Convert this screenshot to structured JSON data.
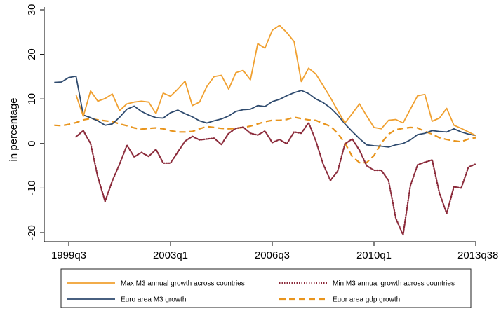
{
  "chart_data": {
    "type": "line",
    "ylabel": "in percentage",
    "xlabel": "",
    "ylim": [
      -21,
      30
    ],
    "y_ticks": [
      -20,
      -10,
      0,
      10,
      20,
      30
    ],
    "x_ticks": [
      {
        "label": "1999q3",
        "value": 1999.5
      },
      {
        "label": "2003q1",
        "value": 2003.0
      },
      {
        "label": "2006q3",
        "value": 2006.5
      },
      {
        "label": "2010q1",
        "value": 2010.0
      },
      {
        "label": "2013q38",
        "value": 2013.5
      }
    ],
    "xlim": [
      1998.5,
      2013.5
    ],
    "grid": false,
    "legend_position": "bottom",
    "series": [
      {
        "name": "Max M3 annual growth across countries",
        "color": "#f0a030",
        "style": "solid",
        "x": [
          1999.75,
          2000.0,
          2000.25,
          2000.5,
          2000.75,
          2001.0,
          2001.25,
          2001.5,
          2001.75,
          2002.0,
          2002.25,
          2002.5,
          2002.75,
          2003.0,
          2003.25,
          2003.5,
          2003.75,
          2004.0,
          2004.25,
          2004.5,
          2004.75,
          2005.0,
          2005.25,
          2005.5,
          2005.75,
          2006.0,
          2006.25,
          2006.5,
          2006.75,
          2007.0,
          2007.25,
          2007.5,
          2007.75,
          2008.0,
          2008.25,
          2008.5,
          2008.75,
          2009.0,
          2009.25,
          2009.5,
          2009.75,
          2010.0,
          2010.25,
          2010.5,
          2010.75,
          2011.0,
          2011.25,
          2011.5,
          2011.75,
          2012.0,
          2012.25,
          2012.5,
          2012.75,
          2013.0,
          2013.25,
          2013.5
        ],
        "values": [
          10.9,
          6.1,
          11.8,
          9.5,
          10.1,
          11.1,
          7.4,
          8.9,
          9.3,
          9.5,
          9.3,
          6.7,
          11.3,
          10.6,
          12.2,
          14.0,
          8.5,
          9.3,
          12.8,
          15.0,
          15.3,
          12.2,
          15.9,
          16.4,
          14.3,
          22.4,
          21.4,
          25.4,
          26.5,
          24.9,
          22.9,
          13.9,
          16.9,
          15.6,
          13.0,
          10.3,
          7.4,
          4.6,
          6.7,
          8.9,
          6.2,
          3.6,
          3.3,
          5.2,
          5.4,
          4.6,
          7.7,
          10.7,
          11.0,
          5.0,
          5.7,
          7.9,
          4.1,
          3.4,
          2.6,
          1.8
        ]
      },
      {
        "name": "Min M3 annual growth across countries",
        "color": "#8b2a3a",
        "style": "dotted",
        "x": [
          1999.75,
          2000.0,
          2000.25,
          2000.5,
          2000.75,
          2001.0,
          2001.25,
          2001.5,
          2001.75,
          2002.0,
          2002.25,
          2002.5,
          2002.75,
          2003.0,
          2003.25,
          2003.5,
          2003.75,
          2004.0,
          2004.25,
          2004.5,
          2004.75,
          2005.0,
          2005.25,
          2005.5,
          2005.75,
          2006.0,
          2006.25,
          2006.5,
          2006.75,
          2007.0,
          2007.25,
          2007.5,
          2007.75,
          2008.0,
          2008.25,
          2008.5,
          2008.75,
          2009.0,
          2009.25,
          2009.5,
          2009.75,
          2010.0,
          2010.25,
          2010.5,
          2010.75,
          2011.0,
          2011.25,
          2011.5,
          2011.75,
          2012.0,
          2012.25,
          2012.5,
          2012.75,
          2013.0,
          2013.25,
          2013.5
        ],
        "values": [
          1.5,
          2.9,
          0.0,
          -7.5,
          -13.0,
          -8.4,
          -4.6,
          -0.4,
          -3.0,
          -2.0,
          -2.9,
          -1.3,
          -4.4,
          -4.4,
          -1.9,
          0.5,
          1.6,
          0.8,
          1.0,
          1.2,
          -0.2,
          2.3,
          3.4,
          3.7,
          2.3,
          1.9,
          2.8,
          0.2,
          0.9,
          -0.1,
          2.6,
          2.3,
          4.7,
          0.6,
          -4.6,
          -8.3,
          -6.2,
          -0.1,
          1.0,
          -1.5,
          -5.0,
          -6.0,
          -6.0,
          -8.3,
          -16.8,
          -20.5,
          -9.5,
          -4.8,
          -4.2,
          -3.7,
          -11.1,
          -15.7,
          -9.7,
          -10.0,
          -5.3,
          -4.6
        ]
      },
      {
        "name": "Euro area M3 growth",
        "color": "#2e4a6e",
        "style": "solid",
        "x": [
          1999.0,
          1999.25,
          1999.5,
          1999.75,
          2000.0,
          2000.25,
          2000.5,
          2000.75,
          2001.0,
          2001.25,
          2001.5,
          2001.75,
          2002.0,
          2002.25,
          2002.5,
          2002.75,
          2003.0,
          2003.25,
          2003.5,
          2003.75,
          2004.0,
          2004.25,
          2004.5,
          2004.75,
          2005.0,
          2005.25,
          2005.5,
          2005.75,
          2006.0,
          2006.25,
          2006.5,
          2006.75,
          2007.0,
          2007.25,
          2007.5,
          2007.75,
          2008.0,
          2008.25,
          2008.5,
          2008.75,
          2009.0,
          2009.25,
          2009.5,
          2009.75,
          2010.0,
          2010.25,
          2010.5,
          2010.75,
          2011.0,
          2011.25,
          2011.5,
          2011.75,
          2012.0,
          2012.25,
          2012.5,
          2012.75,
          2013.0,
          2013.25,
          2013.5
        ],
        "values": [
          13.7,
          13.8,
          14.8,
          15.1,
          6.4,
          5.8,
          5.1,
          4.1,
          4.4,
          5.9,
          7.7,
          8.4,
          7.2,
          6.4,
          5.8,
          5.7,
          6.9,
          7.5,
          6.7,
          6.0,
          5.1,
          4.6,
          5.1,
          5.5,
          6.2,
          7.2,
          7.6,
          7.7,
          8.5,
          8.3,
          9.4,
          9.9,
          10.7,
          11.4,
          11.9,
          11.2,
          10.0,
          9.2,
          8.0,
          6.4,
          4.4,
          2.7,
          1.1,
          -0.3,
          -0.5,
          -0.6,
          -0.8,
          -0.3,
          0.0,
          0.8,
          2.0,
          2.3,
          2.9,
          2.7,
          2.6,
          3.3,
          2.6,
          2.1,
          1.8
        ]
      },
      {
        "name": "Euor area gdp growth",
        "color": "#e8941c",
        "style": "dashed",
        "x": [
          1999.0,
          1999.25,
          1999.5,
          1999.75,
          2000.0,
          2000.25,
          2000.5,
          2000.75,
          2001.0,
          2001.25,
          2001.5,
          2001.75,
          2002.0,
          2002.25,
          2002.5,
          2002.75,
          2003.0,
          2003.25,
          2003.5,
          2003.75,
          2004.0,
          2004.25,
          2004.5,
          2004.75,
          2005.0,
          2005.25,
          2005.5,
          2005.75,
          2006.0,
          2006.25,
          2006.5,
          2006.75,
          2007.0,
          2007.25,
          2007.5,
          2007.75,
          2008.0,
          2008.25,
          2008.5,
          2008.75,
          2009.0,
          2009.25,
          2009.5,
          2009.75,
          2010.0,
          2010.25,
          2010.5,
          2010.75,
          2011.0,
          2011.25,
          2011.5,
          2011.75,
          2012.0,
          2012.25,
          2012.5,
          2012.75,
          2013.0,
          2013.25,
          2013.5
        ],
        "values": [
          4.1,
          4.0,
          4.3,
          4.7,
          5.3,
          5.6,
          5.3,
          5.1,
          4.9,
          4.4,
          4.0,
          3.5,
          3.2,
          3.4,
          3.5,
          3.3,
          2.9,
          2.6,
          2.6,
          2.7,
          3.3,
          3.8,
          3.6,
          3.4,
          3.3,
          3.4,
          3.6,
          3.9,
          4.4,
          4.9,
          5.2,
          5.2,
          5.4,
          5.9,
          5.6,
          5.3,
          5.2,
          4.5,
          3.9,
          2.3,
          0.1,
          -2.9,
          -4.3,
          -4.3,
          -2.7,
          0.1,
          2.1,
          3.1,
          3.4,
          3.6,
          3.5,
          2.7,
          2.1,
          1.3,
          0.9,
          0.6,
          0.4,
          1.0,
          1.3
        ]
      }
    ]
  }
}
